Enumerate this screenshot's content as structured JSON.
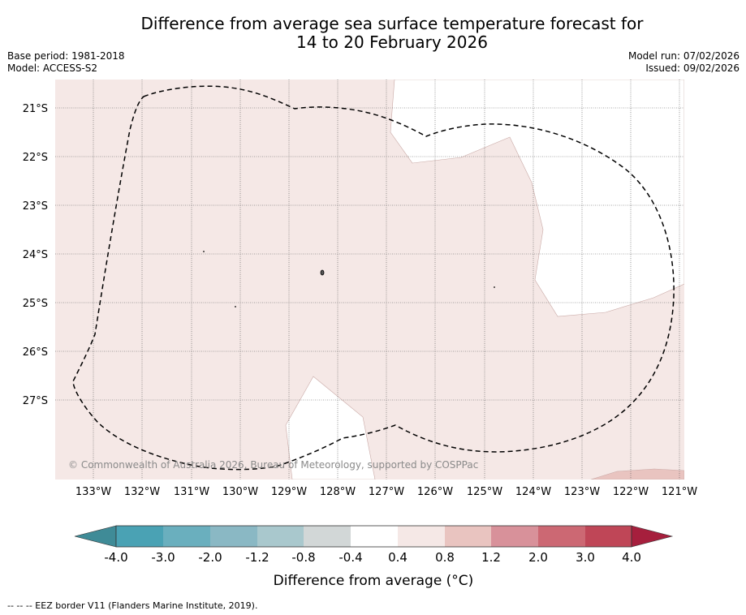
{
  "title": {
    "line1": "Difference from average sea surface temperature forecast for",
    "line2": "14 to 20 February 2026"
  },
  "meta": {
    "base_period": "Base period: 1981-2018",
    "model": "Model: ACCESS-S2",
    "model_run": "Model run: 07/02/2026",
    "issued": "Issued: 09/02/2026"
  },
  "map": {
    "lat_labels": [
      "21°S",
      "22°S",
      "23°S",
      "24°S",
      "25°S",
      "26°S",
      "27°S"
    ],
    "lon_labels": [
      "133°W",
      "132°W",
      "131°W",
      "130°W",
      "129°W",
      "128°W",
      "127°W",
      "126°W",
      "125°W",
      "124°W",
      "123°W",
      "122°W",
      "121°W"
    ],
    "copyright": "© Commonwealth of Australia 2026, Bureau of Meteorology, supported by COSPPac"
  },
  "colorbar": {
    "label": "Difference from average (°C)",
    "ticks": [
      "-4.0",
      "-3.0",
      "-2.0",
      "-1.2",
      "-0.8",
      "-0.4",
      "0.4",
      "0.8",
      "1.2",
      "2.0",
      "3.0",
      "4.0"
    ],
    "colors": [
      "#4aa2b4",
      "#6aafbe",
      "#8ab8c4",
      "#a9c8cd",
      "#d2d7d7",
      "#ffffff",
      "#f5e8e6",
      "#e9c4c0",
      "#d8919a",
      "#cc6873",
      "#bf4657"
    ],
    "under_color": "#3f8b97",
    "over_color": "#a61f3d"
  },
  "footer": "--  --  -- EEZ border V11 (Flanders Marine Institute, 2019)."
}
